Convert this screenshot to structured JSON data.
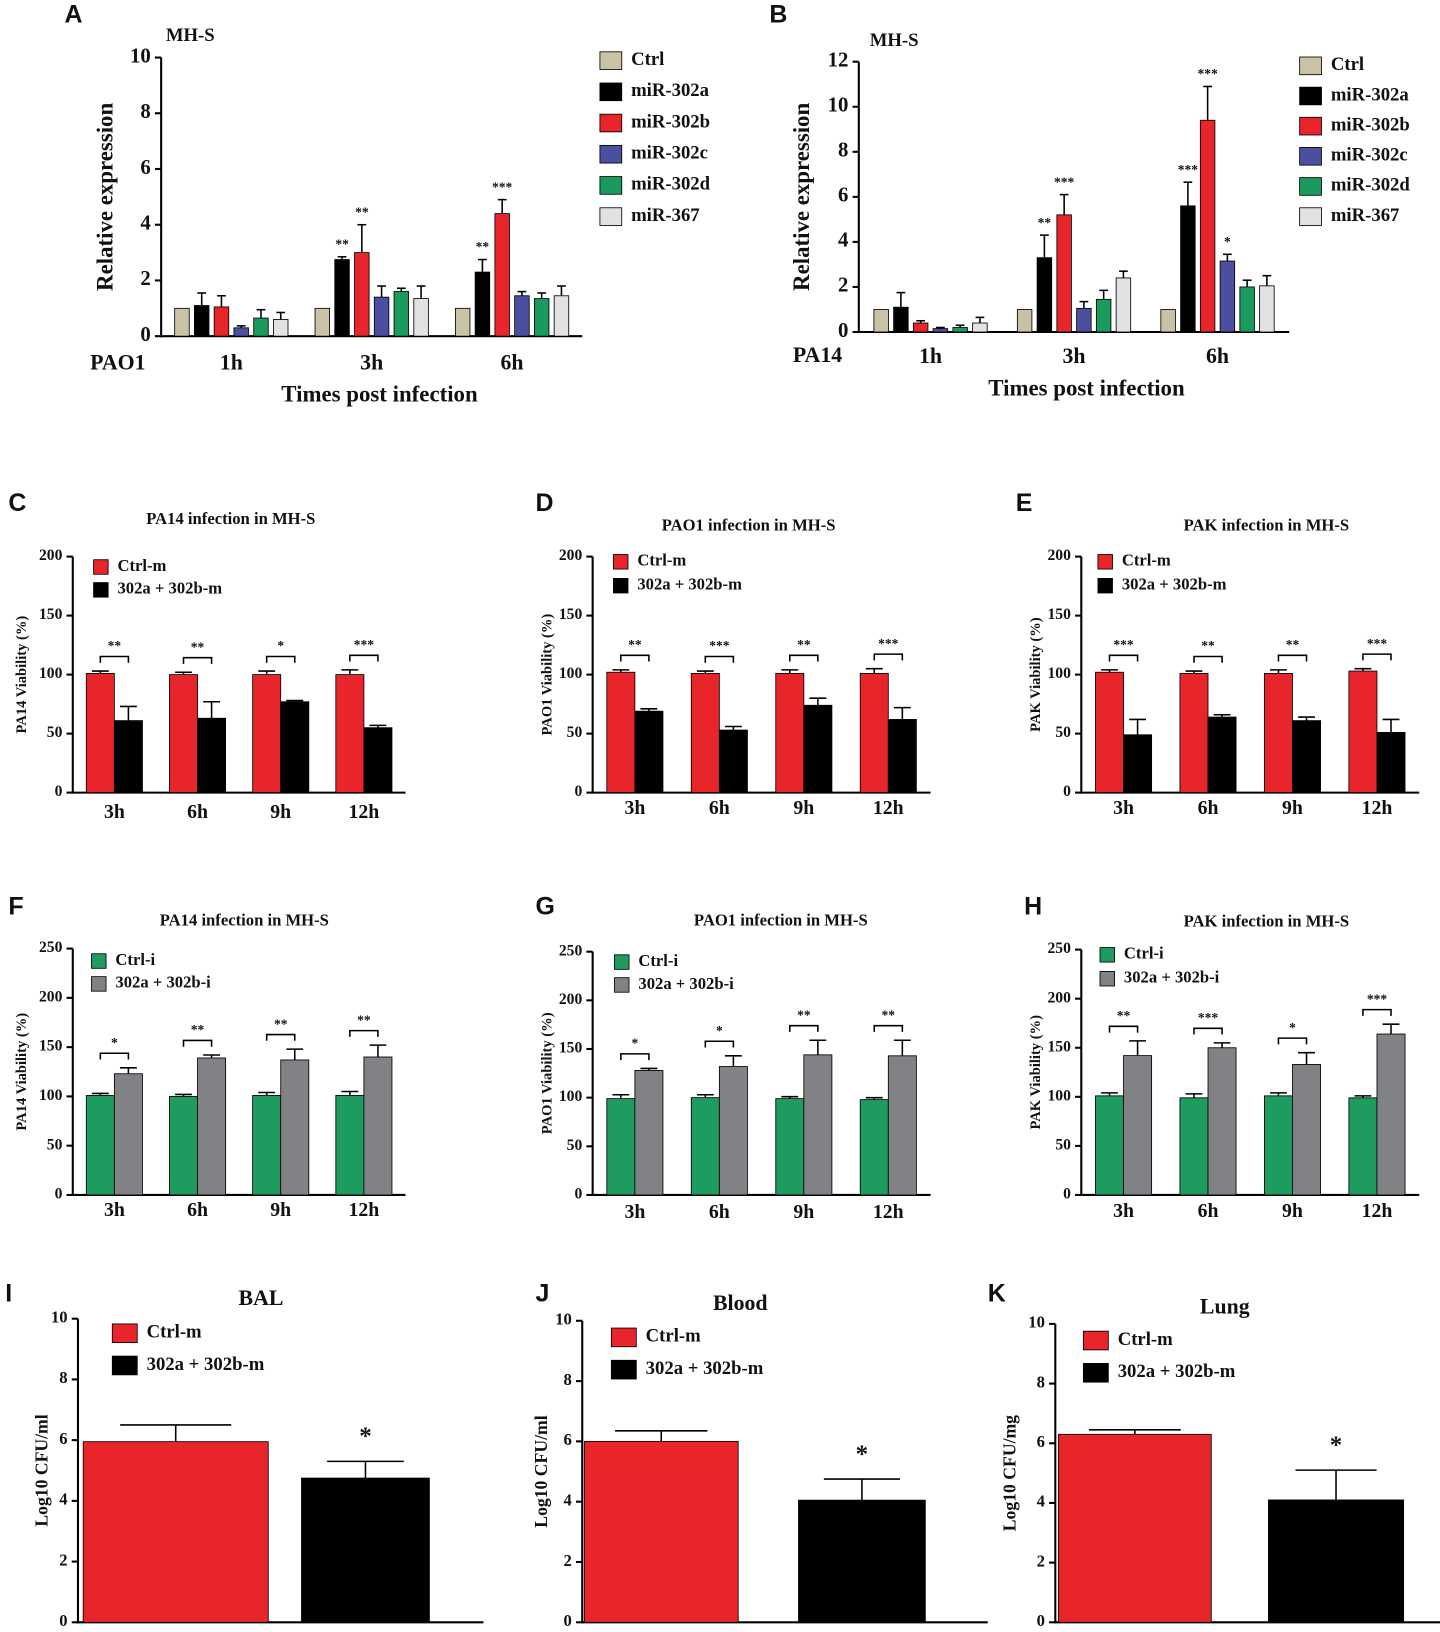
{
  "chart_data": [
    {
      "panel": "A",
      "type": "bar",
      "title": "MH-S",
      "ylabel": "Relative expression",
      "xlabel": "Times post infection",
      "strain": "PAO1",
      "categories": [
        "1h",
        "3h",
        "6h"
      ],
      "ylim": [
        0,
        10
      ],
      "yticks": [
        0,
        2,
        4,
        6,
        8,
        10
      ],
      "series": [
        {
          "name": "Ctrl",
          "color": "#c9c2a5",
          "values": [
            1.0,
            1.0,
            1.0
          ],
          "errors": [
            null,
            null,
            null
          ]
        },
        {
          "name": "miR-302a",
          "color": "#000000",
          "values": [
            1.1,
            2.75,
            2.3
          ],
          "errors": [
            0.45,
            0.1,
            0.45
          ],
          "stars": [
            null,
            "**",
            "**"
          ]
        },
        {
          "name": "miR-302b",
          "color": "#e8252a",
          "values": [
            1.05,
            3.0,
            4.4
          ],
          "errors": [
            0.4,
            1.0,
            0.5
          ],
          "stars": [
            null,
            "**",
            "***"
          ]
        },
        {
          "name": "miR-302c",
          "color": "#4b4fa0",
          "values": [
            0.3,
            1.4,
            1.45
          ],
          "errors": [
            0.07,
            0.4,
            0.15
          ]
        },
        {
          "name": "miR-302d",
          "color": "#1a9a5c",
          "values": [
            0.65,
            1.6,
            1.35
          ],
          "errors": [
            0.3,
            0.12,
            0.2
          ]
        },
        {
          "name": "miR-367",
          "color": "#e2e2e2",
          "values": [
            0.6,
            1.35,
            1.45
          ],
          "errors": [
            0.25,
            0.45,
            0.35
          ]
        }
      ]
    },
    {
      "panel": "B",
      "type": "bar",
      "title": "MH-S",
      "ylabel": "Relative expression",
      "xlabel": "Times post infection",
      "strain": "PA14",
      "categories": [
        "1h",
        "3h",
        "6h"
      ],
      "ylim": [
        0,
        12
      ],
      "yticks": [
        0,
        2,
        4,
        6,
        8,
        10,
        12
      ],
      "series": [
        {
          "name": "Ctrl",
          "color": "#c9c2a5",
          "values": [
            1.0,
            1.0,
            1.0
          ],
          "errors": [
            null,
            null,
            null
          ]
        },
        {
          "name": "miR-302a",
          "color": "#000000",
          "values": [
            1.1,
            3.3,
            5.6
          ],
          "errors": [
            0.65,
            1.0,
            1.05
          ],
          "stars": [
            null,
            "**",
            "***"
          ]
        },
        {
          "name": "miR-302b",
          "color": "#e8252a",
          "values": [
            0.4,
            5.2,
            9.4
          ],
          "errors": [
            0.1,
            0.9,
            1.5
          ],
          "stars": [
            null,
            "***",
            "***"
          ]
        },
        {
          "name": "miR-302c",
          "color": "#4b4fa0",
          "values": [
            0.15,
            1.05,
            3.15
          ],
          "errors": [
            0.05,
            0.3,
            0.3
          ],
          "stars": [
            null,
            null,
            "*"
          ]
        },
        {
          "name": "miR-302d",
          "color": "#1a9a5c",
          "values": [
            0.2,
            1.45,
            2.0
          ],
          "errors": [
            0.1,
            0.4,
            0.3
          ]
        },
        {
          "name": "miR-367",
          "color": "#e2e2e2",
          "values": [
            0.4,
            2.4,
            2.05
          ],
          "errors": [
            0.25,
            0.3,
            0.45
          ]
        }
      ]
    },
    {
      "panel": "C",
      "type": "bar",
      "title": "PA14 infection in MH-S",
      "ylabel": "PA14 Viability (%)",
      "categories": [
        "3h",
        "6h",
        "9h",
        "12h"
      ],
      "ylim": [
        0,
        200
      ],
      "yticks": [
        0,
        50,
        100,
        150,
        200
      ],
      "series": [
        {
          "name": "Ctrl-m",
          "color": "#e8252a",
          "values": [
            101,
            100,
            100,
            100
          ],
          "errors": [
            2,
            2,
            3,
            4
          ]
        },
        {
          "name": "302a + 302b-m",
          "color": "#000000",
          "values": [
            61,
            63,
            77,
            55
          ],
          "errors": [
            12,
            14,
            1,
            2
          ]
        }
      ],
      "brackets": [
        "**",
        "**",
        "*",
        "***"
      ]
    },
    {
      "panel": "D",
      "type": "bar",
      "title": "PAO1 infection  in MH-S",
      "ylabel": "PAO1 Viability (%)",
      "categories": [
        "3h",
        "6h",
        "9h",
        "12h"
      ],
      "ylim": [
        0,
        200
      ],
      "yticks": [
        0,
        50,
        100,
        150,
        200
      ],
      "series": [
        {
          "name": "Ctrl-m",
          "color": "#e8252a",
          "values": [
            102,
            101,
            101,
            101
          ],
          "errors": [
            2,
            2,
            3,
            4
          ]
        },
        {
          "name": "302a + 302b-m",
          "color": "#000000",
          "values": [
            69,
            53,
            74,
            62
          ],
          "errors": [
            2,
            3,
            6,
            10
          ]
        }
      ],
      "brackets": [
        "**",
        "***",
        "**",
        "***"
      ]
    },
    {
      "panel": "E",
      "type": "bar",
      "title": "PAK infection  in MH-S",
      "ylabel": "PAK Viability (%)",
      "categories": [
        "3h",
        "6h",
        "9h",
        "12h"
      ],
      "ylim": [
        0,
        200
      ],
      "yticks": [
        0,
        50,
        100,
        150,
        200
      ],
      "series": [
        {
          "name": "Ctrl-m",
          "color": "#e8252a",
          "values": [
            102,
            101,
            101,
            103
          ],
          "errors": [
            2,
            2,
            3,
            2
          ]
        },
        {
          "name": "302a + 302b-m",
          "color": "#000000",
          "values": [
            49,
            64,
            61,
            51
          ],
          "errors": [
            13,
            2,
            3,
            11
          ]
        }
      ],
      "brackets": [
        "***",
        "**",
        "**",
        "***"
      ]
    },
    {
      "panel": "F",
      "type": "bar",
      "title": "PA14 infection  in MH-S",
      "ylabel": "PA14 Viability (%)",
      "categories": [
        "3h",
        "6h",
        "9h",
        "12h"
      ],
      "ylim": [
        0,
        250
      ],
      "yticks": [
        0,
        50,
        100,
        150,
        200,
        250
      ],
      "series": [
        {
          "name": "Ctrl-i",
          "color": "#1e9b5e",
          "values": [
            101,
            100,
            101,
            101
          ],
          "errors": [
            2,
            2,
            3,
            4
          ]
        },
        {
          "name": "302a + 302b-i",
          "color": "#808285",
          "values": [
            123,
            139,
            137,
            140
          ],
          "errors": [
            6,
            3,
            11,
            12
          ]
        }
      ],
      "brackets": [
        "*",
        "**",
        "**",
        "**"
      ]
    },
    {
      "panel": "G",
      "type": "bar",
      "title": "PAO1 infection  in MH-S",
      "ylabel": "PAO1 Viability (%)",
      "categories": [
        "3h",
        "6h",
        "9h",
        "12h"
      ],
      "ylim": [
        0,
        250
      ],
      "yticks": [
        0,
        50,
        100,
        150,
        200,
        250
      ],
      "series": [
        {
          "name": "Ctrl-i",
          "color": "#1e9b5e",
          "values": [
            99,
            100,
            99,
            98
          ],
          "errors": [
            4,
            3,
            2,
            2
          ]
        },
        {
          "name": "302a + 302b-i",
          "color": "#808285",
          "values": [
            128,
            132,
            144,
            143
          ],
          "errors": [
            2,
            11,
            15,
            16
          ]
        }
      ],
      "brackets": [
        "*",
        "*",
        "**",
        "**"
      ]
    },
    {
      "panel": "H",
      "type": "bar",
      "title": "PAK infection  in MH-S",
      "ylabel": "PAK Viability (%)",
      "categories": [
        "3h",
        "6h",
        "9h",
        "12h"
      ],
      "ylim": [
        0,
        250
      ],
      "yticks": [
        0,
        50,
        100,
        150,
        200,
        250
      ],
      "series": [
        {
          "name": "Ctrl-i",
          "color": "#1e9b5e",
          "values": [
            101,
            99,
            101,
            99
          ],
          "errors": [
            3,
            4,
            3,
            2
          ]
        },
        {
          "name": "302a + 302b-i",
          "color": "#808285",
          "values": [
            142,
            150,
            133,
            164
          ],
          "errors": [
            15,
            5,
            12,
            10
          ]
        }
      ],
      "brackets": [
        "**",
        "***",
        "*",
        "***"
      ]
    },
    {
      "panel": "I",
      "type": "bar",
      "title": "BAL",
      "ylabel": "Log10 CFU/ml",
      "ylim": [
        0,
        10
      ],
      "yticks": [
        0,
        2,
        4,
        6,
        8,
        10
      ],
      "series": [
        {
          "name": "Ctrl-m",
          "color": "#e8252a",
          "values": [
            5.95
          ],
          "errors": [
            0.55
          ]
        },
        {
          "name": "302a + 302b-m",
          "color": "#000000",
          "values": [
            4.75
          ],
          "errors": [
            0.55
          ],
          "stars": [
            "*"
          ]
        }
      ]
    },
    {
      "panel": "J",
      "type": "bar",
      "title": "Blood",
      "ylabel": "Log10 CFU/ml",
      "ylim": [
        0,
        10
      ],
      "yticks": [
        0,
        2,
        4,
        6,
        8,
        10
      ],
      "series": [
        {
          "name": "Ctrl-m",
          "color": "#e8252a",
          "values": [
            6.0
          ],
          "errors": [
            0.35
          ]
        },
        {
          "name": "302a + 302b-m",
          "color": "#000000",
          "values": [
            4.05
          ],
          "errors": [
            0.7
          ],
          "stars": [
            "*"
          ]
        }
      ]
    },
    {
      "panel": "K",
      "type": "bar",
      "title": "Lung",
      "ylabel": "Log10 CFU/mg",
      "ylim": [
        0,
        10
      ],
      "yticks": [
        0,
        2,
        4,
        6,
        8,
        10
      ],
      "series": [
        {
          "name": "Ctrl-m",
          "color": "#e8252a",
          "values": [
            6.3
          ],
          "errors": [
            0.15
          ]
        },
        {
          "name": "302a + 302b-m",
          "color": "#000000",
          "values": [
            4.1
          ],
          "errors": [
            1.0
          ],
          "stars": [
            "*"
          ]
        }
      ]
    }
  ]
}
